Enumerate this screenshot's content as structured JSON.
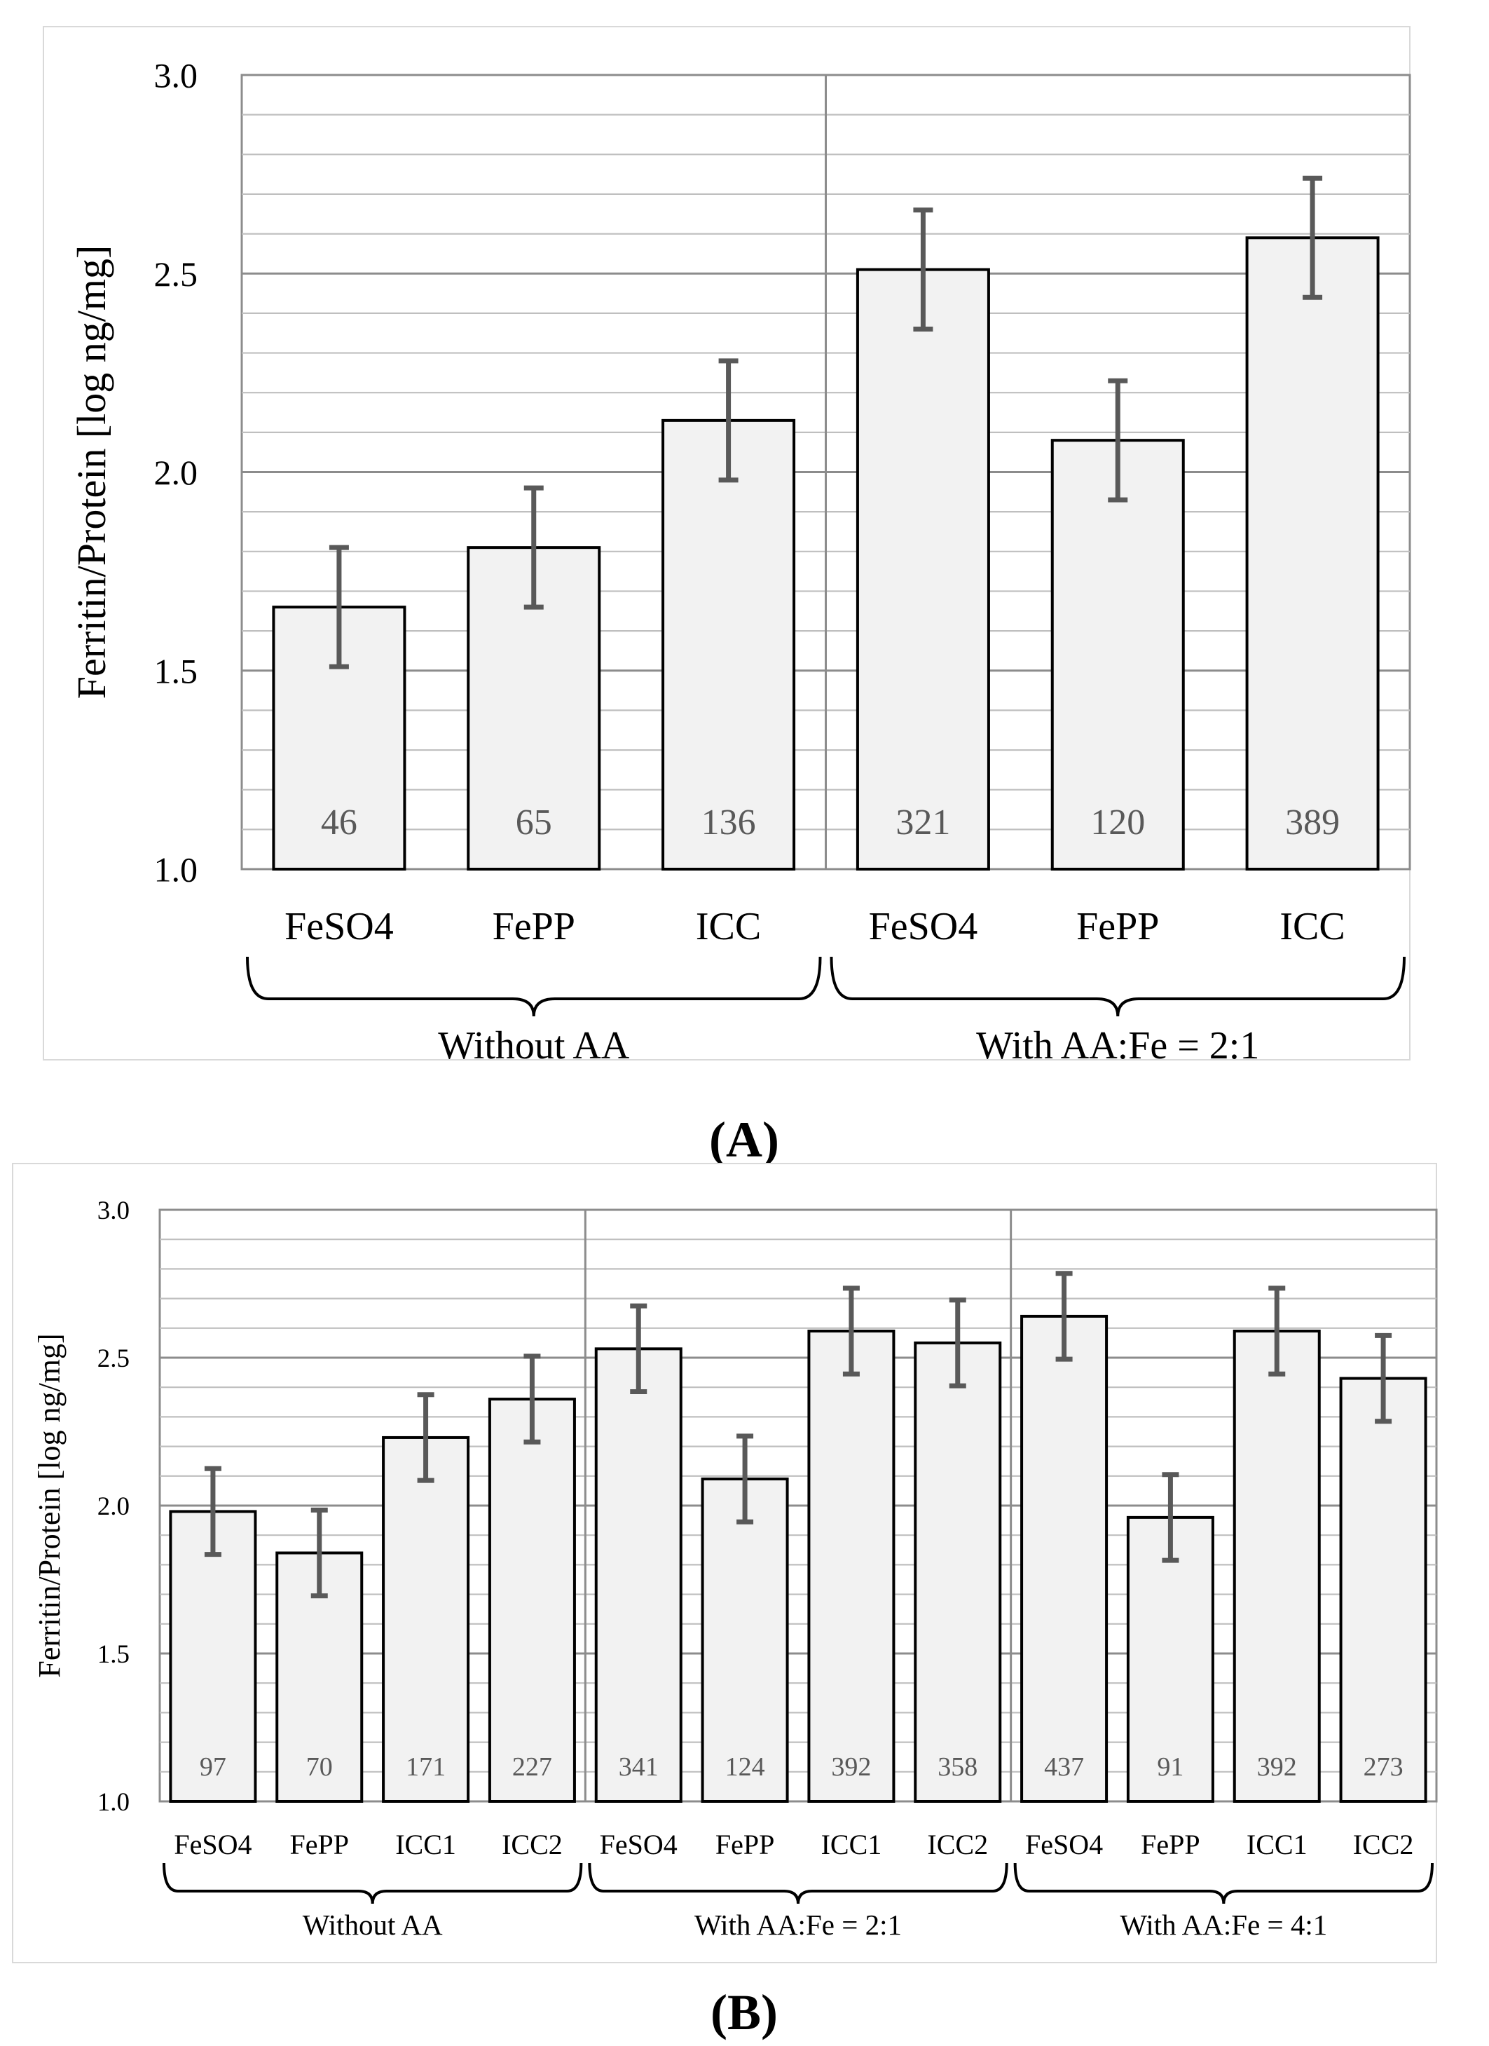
{
  "panels": [
    {
      "label_open": "(",
      "label_letter": "A",
      "label_close": ")"
    },
    {
      "label_open": "(",
      "label_letter": "B",
      "label_close": ")"
    }
  ],
  "colors": {
    "bar_fill": "#f2f2f2",
    "bar_edge": "#000000",
    "error_bar": "#595959",
    "grid_major": "#8c8c8c",
    "grid_minor": "#bfbfbf"
  },
  "chart_data": [
    {
      "type": "bar",
      "ylabel": "Ferritin/Protein [log ng/mg]",
      "ylim": [
        1.0,
        3.0
      ],
      "yticks": [
        "1.0",
        "1.5",
        "2.0",
        "2.5",
        "3.0"
      ],
      "minor_grid_step": 0.1,
      "categories": [
        "FeSO4",
        "FePP",
        "ICC",
        "FeSO4",
        "FePP",
        "ICC"
      ],
      "values": [
        1.66,
        1.81,
        2.13,
        2.51,
        2.08,
        2.59
      ],
      "error": [
        0.15,
        0.15,
        0.15,
        0.15,
        0.15,
        0.15
      ],
      "bar_labels": [
        "46",
        "65",
        "136",
        "321",
        "120",
        "389"
      ],
      "groups": [
        {
          "name": "Without AA",
          "start": 0,
          "count": 3
        },
        {
          "name": "With AA:Fe = 2:1",
          "start": 3,
          "count": 3
        }
      ]
    },
    {
      "type": "bar",
      "ylabel": "Ferritin/Protein [log ng/mg]",
      "ylim": [
        1.0,
        3.0
      ],
      "yticks": [
        "1.0",
        "1.5",
        "2.0",
        "2.5",
        "3.0"
      ],
      "minor_grid_step": 0.1,
      "categories": [
        "FeSO4",
        "FePP",
        "ICC1",
        "ICC2",
        "FeSO4",
        "FePP",
        "ICC1",
        "ICC2",
        "FeSO4",
        "FePP",
        "ICC1",
        "ICC2"
      ],
      "values": [
        1.98,
        1.84,
        2.23,
        2.36,
        2.53,
        2.09,
        2.59,
        2.55,
        2.64,
        1.96,
        2.59,
        2.43
      ],
      "error": [
        0.145,
        0.145,
        0.145,
        0.145,
        0.145,
        0.145,
        0.145,
        0.145,
        0.145,
        0.145,
        0.145,
        0.145
      ],
      "bar_labels": [
        "97",
        "70",
        "171",
        "227",
        "341",
        "124",
        "392",
        "358",
        "437",
        "91",
        "392",
        "273"
      ],
      "groups": [
        {
          "name": "Without AA",
          "start": 0,
          "count": 4
        },
        {
          "name": "With AA:Fe = 2:1",
          "start": 4,
          "count": 4
        },
        {
          "name": "With AA:Fe = 4:1",
          "start": 8,
          "count": 4
        }
      ]
    }
  ]
}
